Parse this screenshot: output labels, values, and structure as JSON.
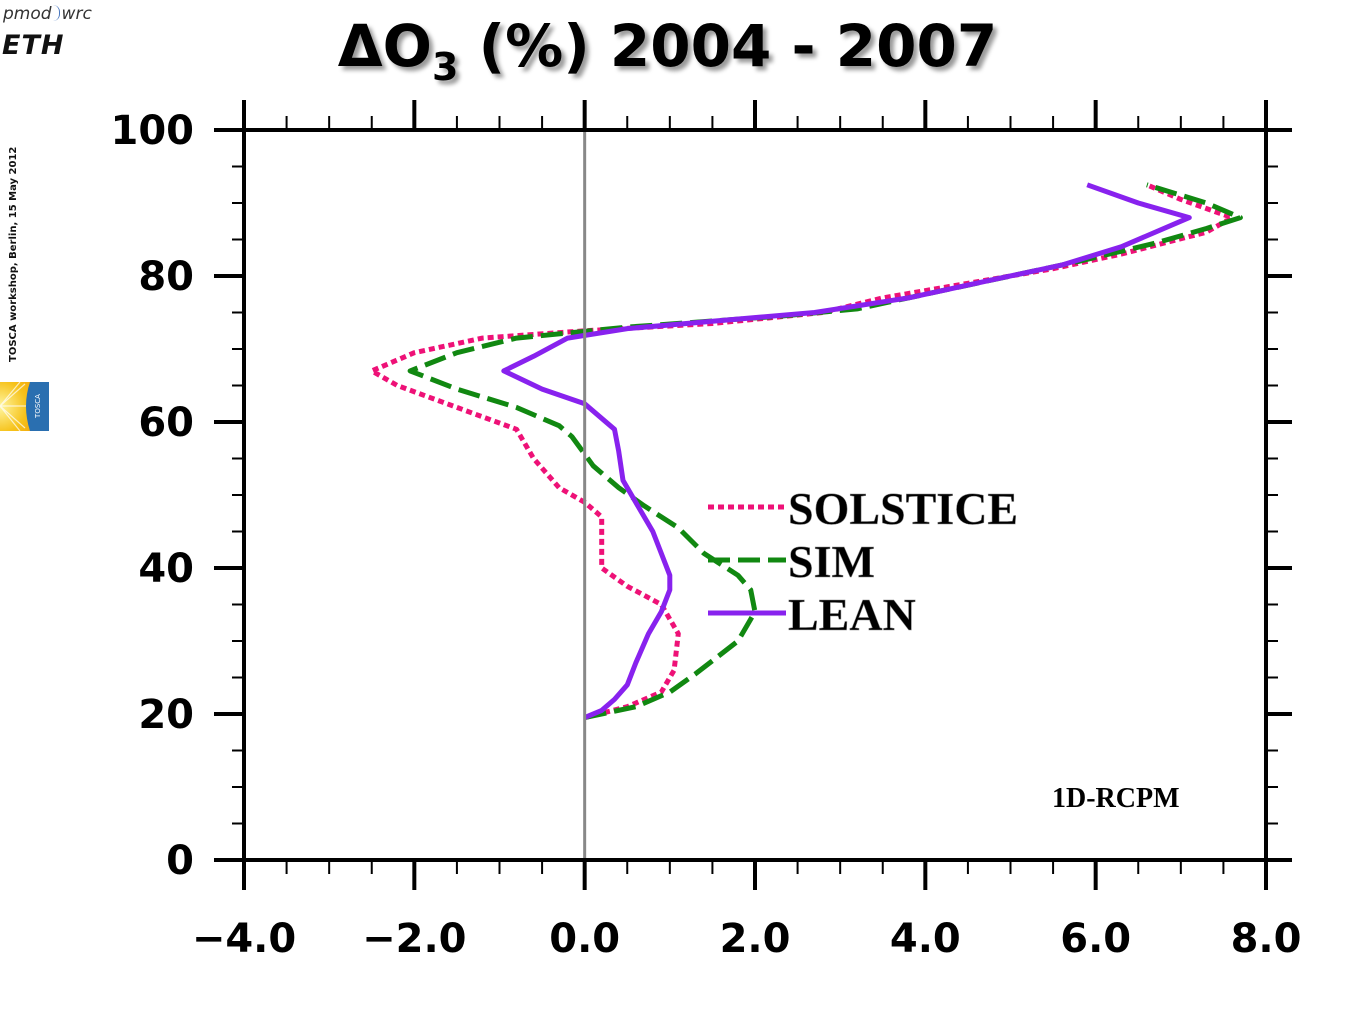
{
  "header": {
    "logo_pmod": "pmod",
    "logo_wrc": "wrc",
    "logo_eth": "ETH",
    "side_caption": "TOSCA workshop, Berlin,  15 May 2012",
    "tosca_logo_text": "TOSCA"
  },
  "title": {
    "prefix": "ΔO",
    "subscript": "3",
    "suffix": " (%) 2004 - 2007"
  },
  "chart_data": {
    "type": "line",
    "title": "ΔO3 (%) 2004 - 2007",
    "xlabel": "",
    "ylabel": "",
    "xlim": [
      -4.0,
      8.0
    ],
    "ylim": [
      0,
      100
    ],
    "x_ticks": [
      -4.0,
      -2.0,
      0.0,
      2.0,
      4.0,
      6.0,
      8.0
    ],
    "x_tick_labels": [
      "−4.0",
      "−2.0",
      "0.0",
      "2.0",
      "4.0",
      "6.0",
      "8.0"
    ],
    "y_ticks": [
      0,
      20,
      40,
      60,
      80,
      100
    ],
    "y_tick_labels": [
      "0",
      "20",
      "40",
      "60",
      "80",
      "100"
    ],
    "grid": false,
    "zero_line_x": 0.0,
    "legend_position": "center-right",
    "annotation": "1D-RCPM",
    "series": [
      {
        "name": "SOLSTICE",
        "color": "#ee1177",
        "style": "dotted",
        "points": [
          [
            0.0,
            19.5
          ],
          [
            0.5,
            21
          ],
          [
            0.9,
            23
          ],
          [
            1.05,
            26
          ],
          [
            1.1,
            31
          ],
          [
            0.9,
            35
          ],
          [
            0.5,
            37.5
          ],
          [
            0.2,
            40
          ],
          [
            0.2,
            43
          ],
          [
            0.2,
            47
          ],
          [
            0.0,
            49
          ],
          [
            -0.3,
            51
          ],
          [
            -0.6,
            55
          ],
          [
            -0.8,
            59
          ],
          [
            -1.5,
            62
          ],
          [
            -2.2,
            65
          ],
          [
            -2.5,
            67
          ],
          [
            -2.0,
            69.5
          ],
          [
            -1.2,
            71.5
          ],
          [
            0.0,
            72.5
          ],
          [
            1.5,
            73.5
          ],
          [
            2.8,
            75
          ],
          [
            3.5,
            77
          ],
          [
            4.5,
            79
          ],
          [
            5.5,
            81
          ],
          [
            6.3,
            83
          ],
          [
            7.3,
            86
          ],
          [
            7.6,
            88
          ],
          [
            7.0,
            90.5
          ],
          [
            6.6,
            92.5
          ]
        ]
      },
      {
        "name": "SIM",
        "color": "#118811",
        "style": "dashed",
        "points": [
          [
            0.0,
            19.5
          ],
          [
            0.6,
            21
          ],
          [
            1.0,
            23
          ],
          [
            1.3,
            25.5
          ],
          [
            1.8,
            30
          ],
          [
            2.0,
            34
          ],
          [
            1.95,
            37
          ],
          [
            1.8,
            39
          ],
          [
            1.4,
            42
          ],
          [
            1.1,
            45.5
          ],
          [
            0.7,
            48.5
          ],
          [
            0.4,
            51
          ],
          [
            0.1,
            54
          ],
          [
            -0.15,
            58
          ],
          [
            -0.3,
            59.5
          ],
          [
            -0.8,
            62
          ],
          [
            -1.5,
            64.5
          ],
          [
            -2.05,
            67
          ],
          [
            -1.5,
            69.5
          ],
          [
            -0.8,
            71.5
          ],
          [
            0.5,
            73
          ],
          [
            2.3,
            74.5
          ],
          [
            3.2,
            75.5
          ],
          [
            4.2,
            78
          ],
          [
            5.0,
            80
          ],
          [
            5.8,
            82
          ],
          [
            6.7,
            84.5
          ],
          [
            7.3,
            86.5
          ],
          [
            7.7,
            88
          ],
          [
            7.3,
            90
          ],
          [
            6.6,
            92.5
          ]
        ]
      },
      {
        "name": "LEAN",
        "color": "#8822ee",
        "style": "solid",
        "points": [
          [
            0.0,
            19.5
          ],
          [
            0.2,
            20.5
          ],
          [
            0.35,
            22
          ],
          [
            0.5,
            24
          ],
          [
            0.6,
            27
          ],
          [
            0.75,
            31
          ],
          [
            0.9,
            34
          ],
          [
            1.0,
            37
          ],
          [
            1.0,
            39
          ],
          [
            0.9,
            42
          ],
          [
            0.8,
            45
          ],
          [
            0.65,
            48
          ],
          [
            0.45,
            52
          ],
          [
            0.4,
            56
          ],
          [
            0.35,
            59
          ],
          [
            0.0,
            62.5
          ],
          [
            -0.5,
            64.5
          ],
          [
            -0.95,
            67
          ],
          [
            -0.6,
            69
          ],
          [
            -0.2,
            71.5
          ],
          [
            0.5,
            72.8
          ],
          [
            1.5,
            73.8
          ],
          [
            2.7,
            75
          ],
          [
            3.8,
            77
          ],
          [
            4.8,
            79.5
          ],
          [
            5.6,
            81.5
          ],
          [
            6.3,
            84
          ],
          [
            7.1,
            88
          ],
          [
            6.5,
            90
          ],
          [
            5.9,
            92.5
          ]
        ]
      }
    ]
  }
}
